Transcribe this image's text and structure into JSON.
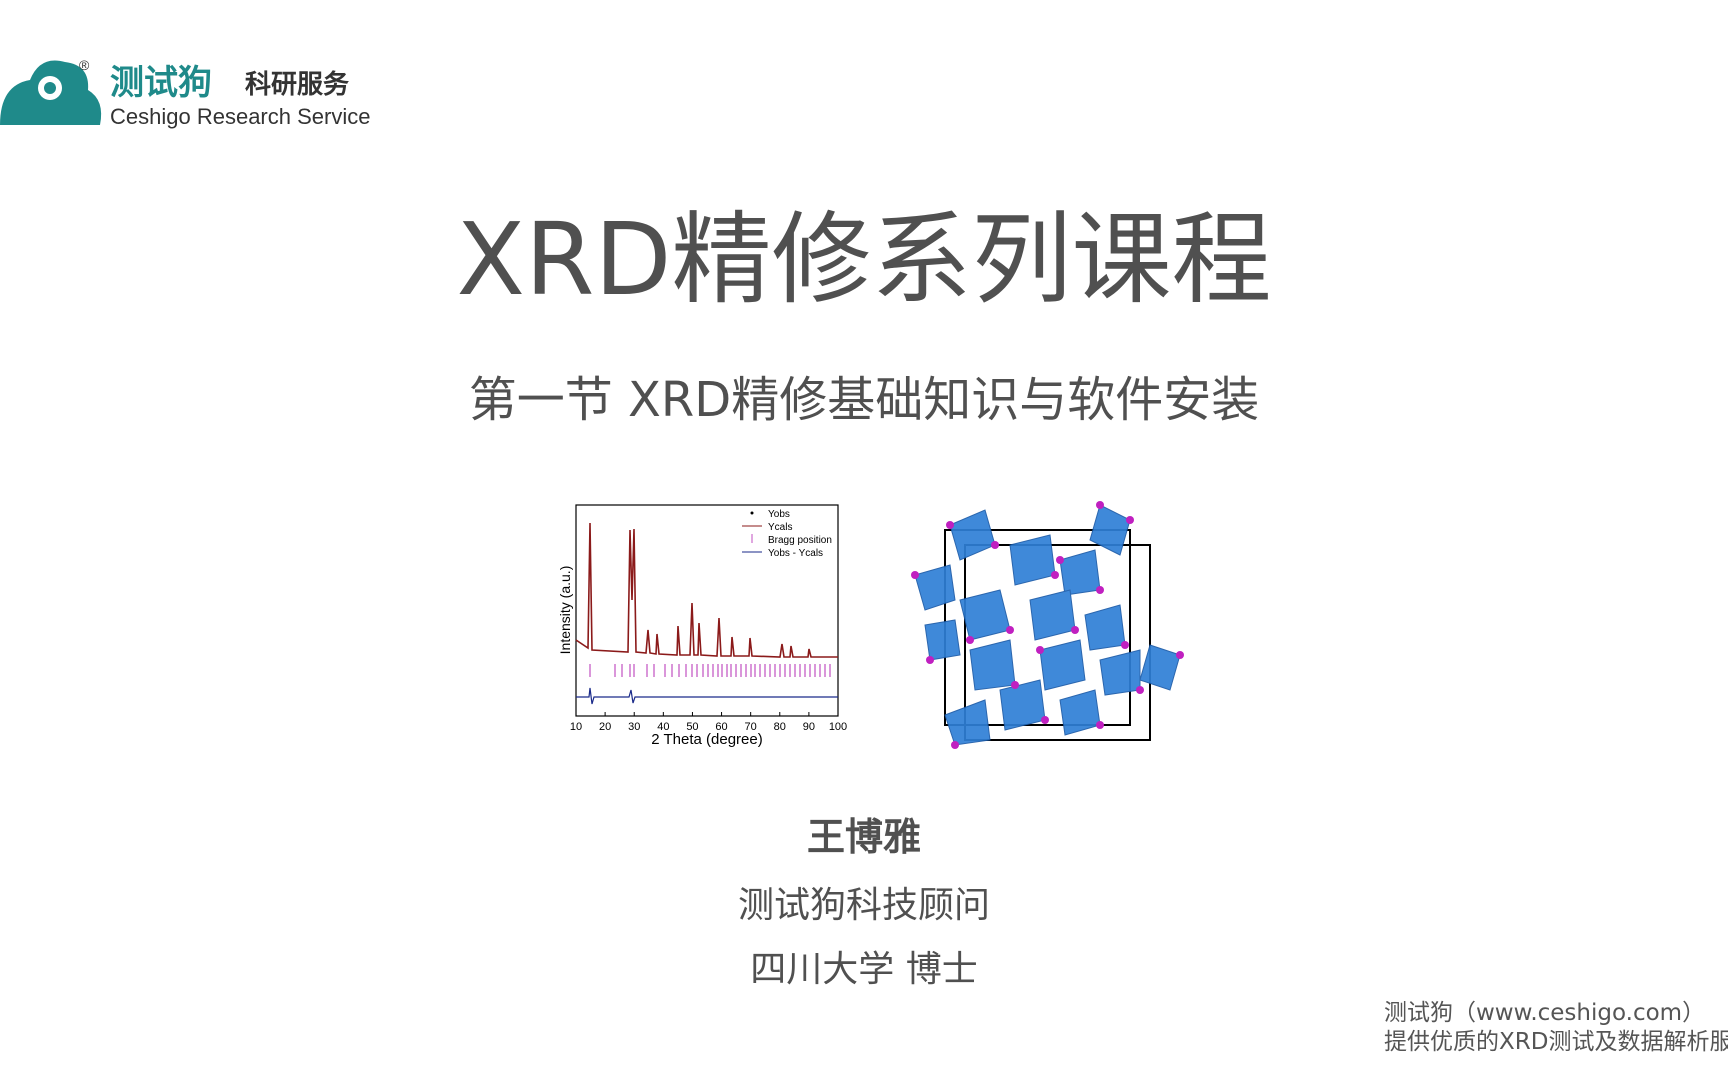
{
  "logo": {
    "registered": "®",
    "brand": "测试狗",
    "tagline": "科研服务",
    "english": "Ceshigo Research Service"
  },
  "title": "XRD精修系列课程",
  "subtitle": "第一节 XRD精修基础知识与软件安装",
  "figure": {
    "ylabel": "Intensity (a.u.)",
    "xlabel": "2 Theta (degree)",
    "xlim": [
      10,
      100
    ],
    "xticks": [
      10,
      20,
      30,
      40,
      50,
      60,
      70,
      80,
      90,
      100
    ],
    "legend": [
      "Yobs",
      "Ycals",
      "Bragg position",
      "Yobs - Ycals"
    ]
  },
  "presenter": {
    "name": "王博雅",
    "role": "测试狗科技顾问",
    "affiliation": "四川大学 博士"
  },
  "watermark": [
    "测试狗（www.ceshigo.com）",
    "提供优质的XRD测试及数据解析服"
  ]
}
